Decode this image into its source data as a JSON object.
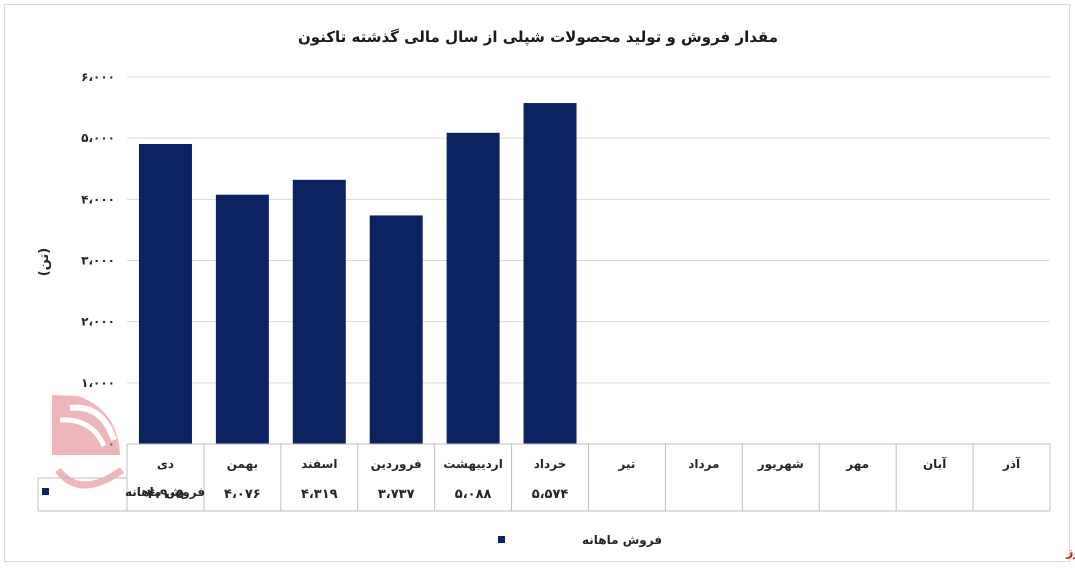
{
  "chart_data": {
    "type": "bar",
    "title": "مقدار فروش و تولید محصولات شپلی از سال مالی گذشته تاکنون",
    "ylabel": "(تن)",
    "ylim": [
      0,
      6000
    ],
    "y_ticks": [
      "۰",
      "۱،۰۰۰",
      "۲،۰۰۰",
      "۳،۰۰۰",
      "۴،۰۰۰",
      "۵،۰۰۰",
      "۶،۰۰۰"
    ],
    "grid": true,
    "legend_position": "bottom",
    "categories": [
      "دی",
      "بهمن",
      "اسفند",
      "فروردین",
      "اردیبهشت",
      "خرداد",
      "تیر",
      "مرداد",
      "شهریور",
      "مهر",
      "آبان",
      "آذر"
    ],
    "series": [
      {
        "name": "فروش ماهانه",
        "color": "#0d2260",
        "values": [
          4905,
          4076,
          4319,
          3737,
          5088,
          5574,
          null,
          null,
          null,
          null,
          null,
          null
        ],
        "labels": [
          "۴،۹۰۵",
          "۴،۰۷۶",
          "۴،۳۱۹",
          "۳،۷۳۷",
          "۵،۰۸۸",
          "۵،۵۷۴",
          "",
          "",
          "",
          "",
          "",
          ""
        ]
      }
    ]
  },
  "brand": {
    "logo_text": "بورس نیوز",
    "logo_color": "#d4202a",
    "watermark_color": "#e8a3a8"
  }
}
